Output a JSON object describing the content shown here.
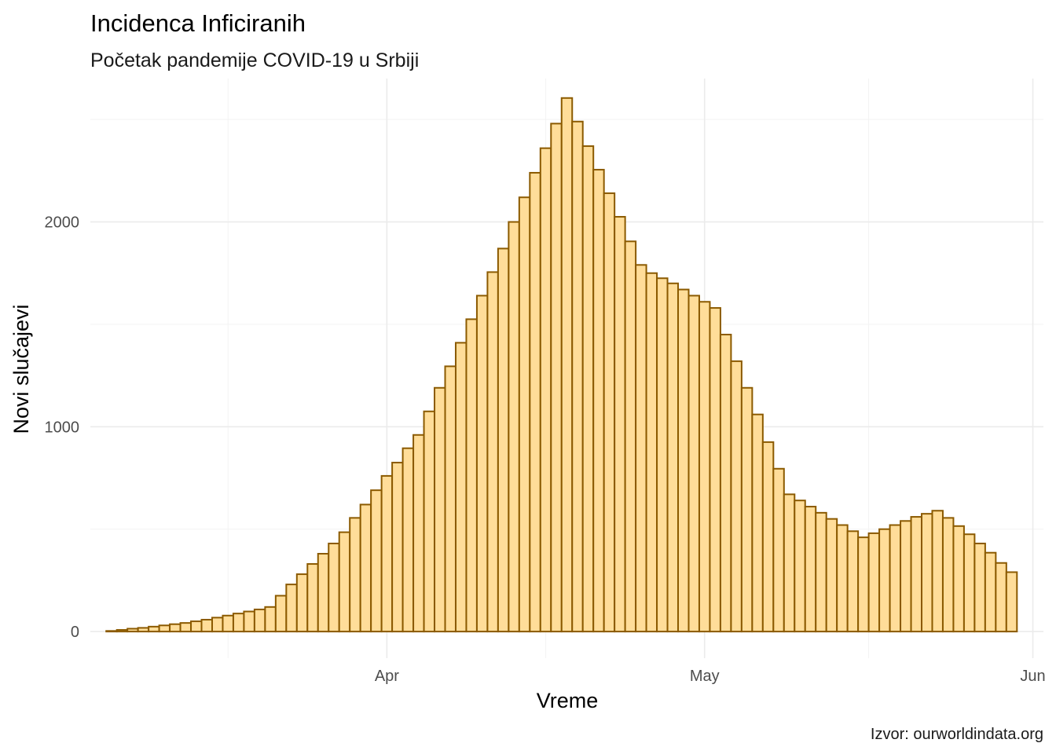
{
  "chart_data": {
    "type": "bar",
    "title": "Incidenca Inficiranih",
    "subtitle": "Početak pandemije COVID-19 u Srbiji",
    "xlabel": "Vreme",
    "ylabel": "Novi slučajevi",
    "caption": "Izvor: ourworldindata.org",
    "x_start_date": "2020-03-06",
    "x_range": [
      "2020-03-04",
      "2020-06-02"
    ],
    "ylim": [
      -130,
      2700
    ],
    "x_ticks": [
      {
        "label": "Apr",
        "date": "2020-04-01"
      },
      {
        "label": "May",
        "date": "2020-05-01"
      },
      {
        "label": "Jun",
        "date": "2020-06-01"
      }
    ],
    "y_ticks": [
      {
        "label": "0",
        "value": 0
      },
      {
        "label": "1000",
        "value": 1000
      },
      {
        "label": "2000",
        "value": 2000
      }
    ],
    "grid": true,
    "fill_color": "#ffdd99",
    "stroke_color": "#8b5a00",
    "values": [
      3,
      8,
      14,
      18,
      24,
      30,
      36,
      42,
      50,
      58,
      68,
      78,
      88,
      98,
      108,
      120,
      175,
      230,
      280,
      330,
      380,
      430,
      485,
      555,
      620,
      690,
      760,
      825,
      895,
      960,
      1075,
      1190,
      1295,
      1410,
      1525,
      1640,
      1755,
      1870,
      2000,
      2120,
      2240,
      2360,
      2480,
      2605,
      2490,
      2370,
      2255,
      2140,
      2025,
      1905,
      1790,
      1750,
      1725,
      1700,
      1670,
      1640,
      1610,
      1580,
      1450,
      1320,
      1190,
      1060,
      925,
      795,
      670,
      640,
      610,
      580,
      550,
      520,
      490,
      460,
      480,
      500,
      520,
      540,
      560,
      575,
      590,
      555,
      515,
      475,
      430,
      385,
      335,
      290
    ]
  }
}
